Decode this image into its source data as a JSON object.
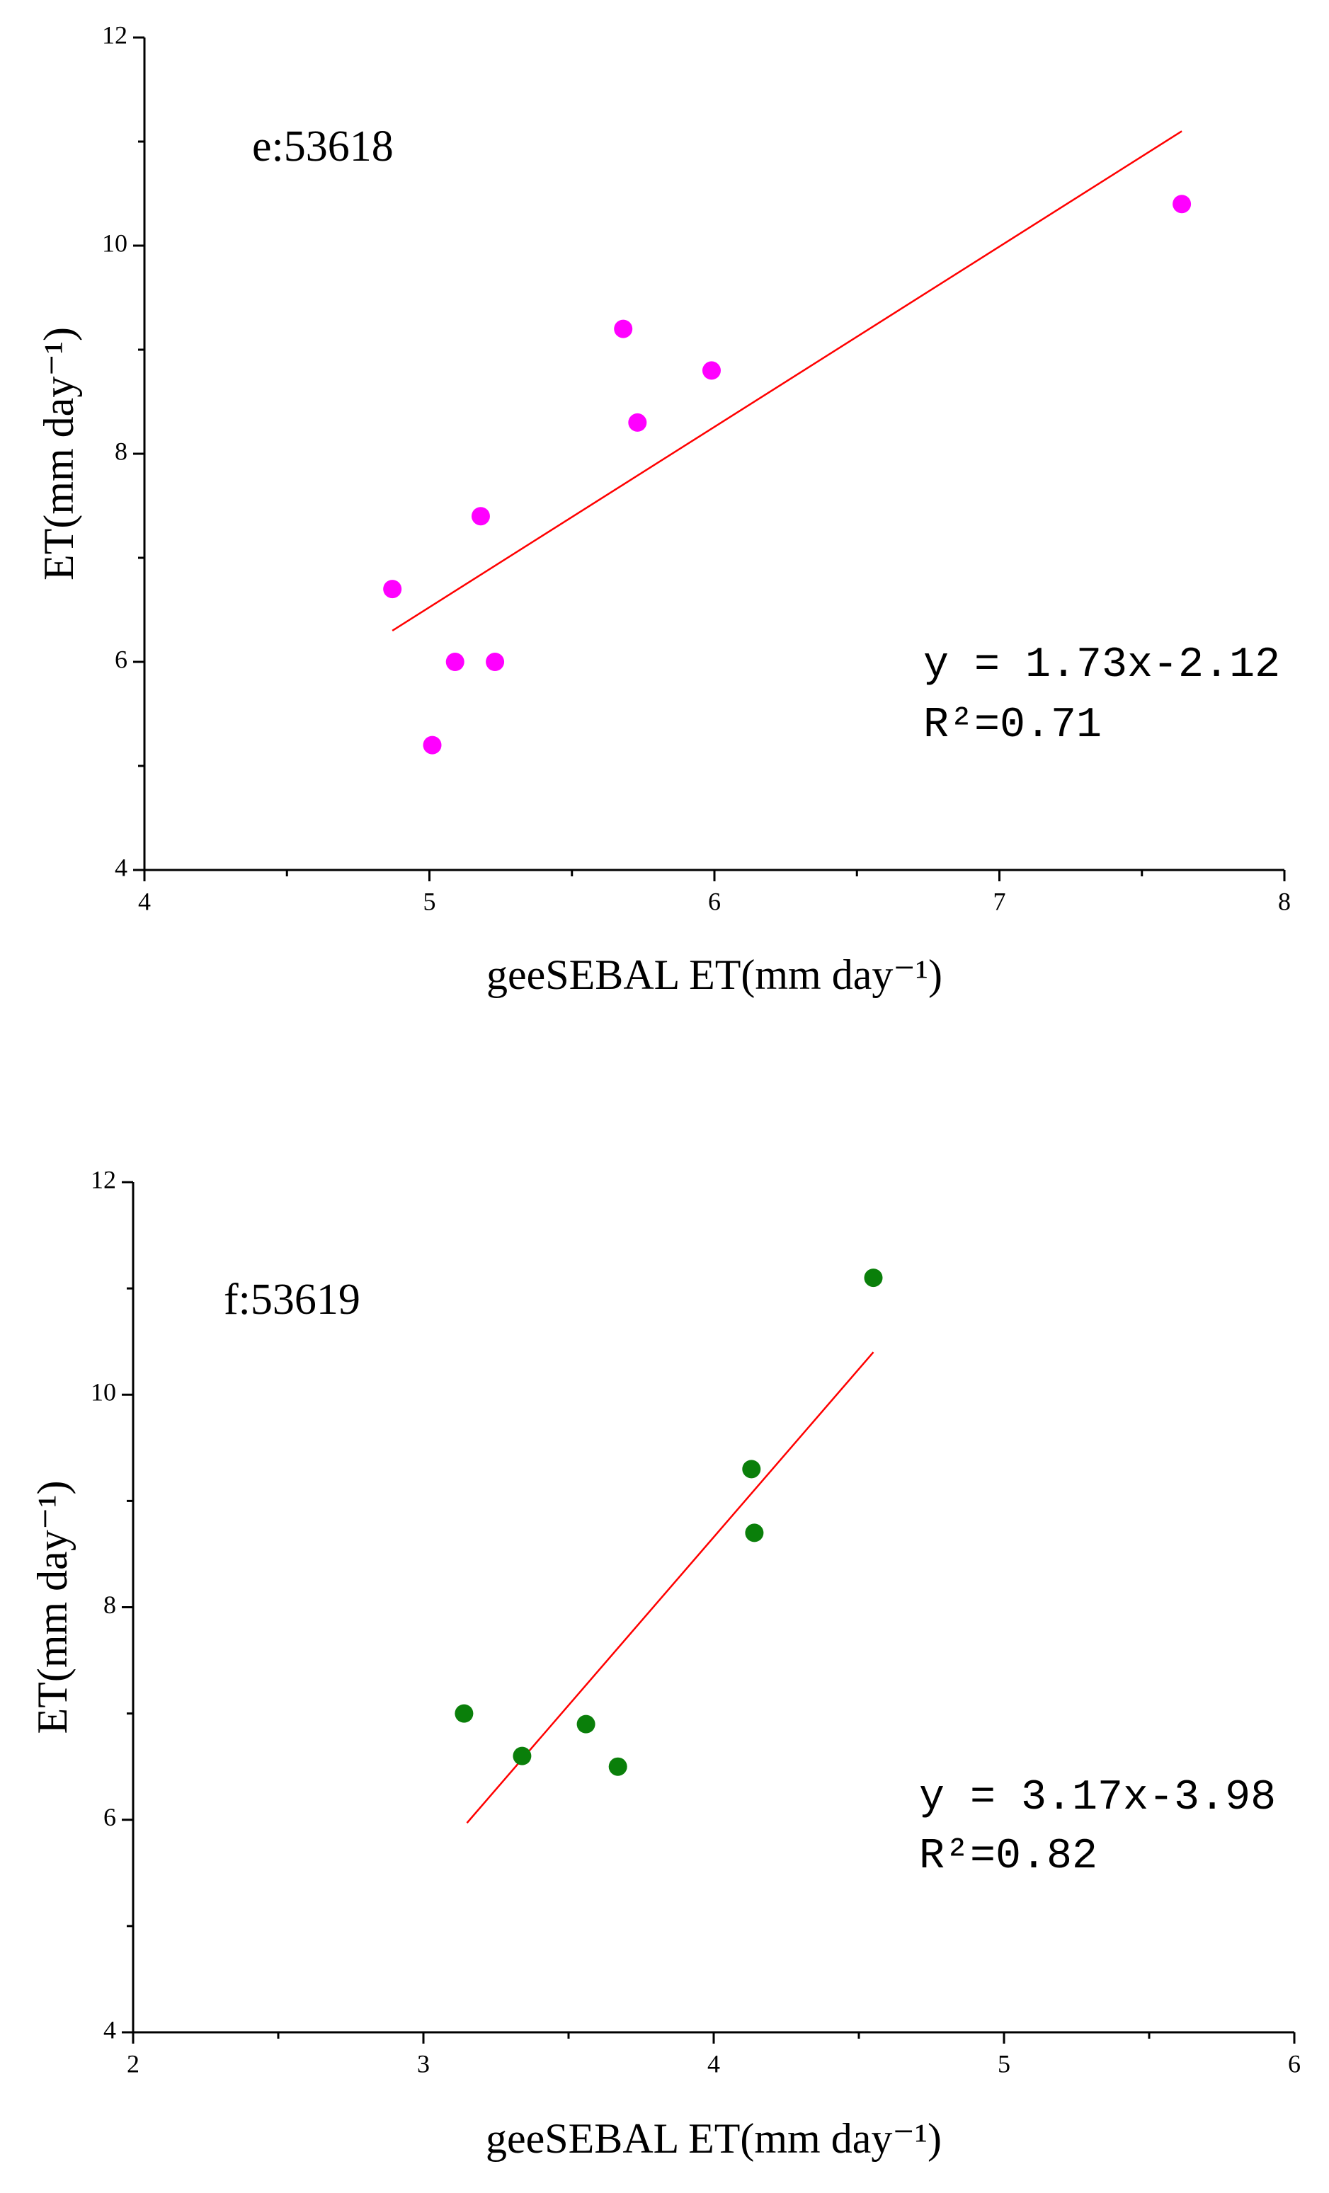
{
  "chart_data": [
    {
      "type": "scatter",
      "title": "e:53618",
      "x_label": "geeSEBAL ET(mm day⁻¹)",
      "y_label": "ET(mm day⁻¹)",
      "xlim": [
        4,
        8
      ],
      "xticks": [
        4,
        5,
        6,
        7,
        8
      ],
      "ylim": [
        4,
        12
      ],
      "yticks": [
        4,
        6,
        8,
        10,
        12
      ],
      "color": "#ff00ff",
      "x": [
        4.87,
        5.01,
        5.09,
        5.18,
        5.23,
        5.68,
        5.73,
        5.99,
        7.64
      ],
      "y": [
        6.7,
        5.2,
        6.0,
        7.4,
        6.0,
        9.2,
        8.3,
        8.8,
        10.4
      ],
      "fit_line": {
        "color": "#ff0000",
        "x": [
          4.87,
          7.64
        ],
        "y": [
          6.3,
          11.1
        ]
      },
      "annotations": [
        "y = 1.73x-2.12",
        "R²=0.71"
      ]
    },
    {
      "type": "scatter",
      "title": "f:53619",
      "x_label": "geeSEBAL ET(mm day⁻¹)",
      "y_label": "ET(mm day⁻¹)",
      "xlim": [
        2,
        6
      ],
      "xticks": [
        2,
        3,
        4,
        5,
        6
      ],
      "ylim": [
        4,
        12
      ],
      "yticks": [
        4,
        6,
        8,
        10,
        12
      ],
      "color": "#0a7f0a",
      "x": [
        3.14,
        3.34,
        3.56,
        3.67,
        4.13,
        4.14,
        4.55
      ],
      "y": [
        7.0,
        6.6,
        6.9,
        6.5,
        9.3,
        8.7,
        11.1
      ],
      "fit_line": {
        "color": "#ff0000",
        "x": [
          3.15,
          4.55
        ],
        "y": [
          5.97,
          10.4
        ]
      },
      "annotations": [
        "y = 3.17x-3.98",
        "R²=0.82"
      ]
    }
  ]
}
